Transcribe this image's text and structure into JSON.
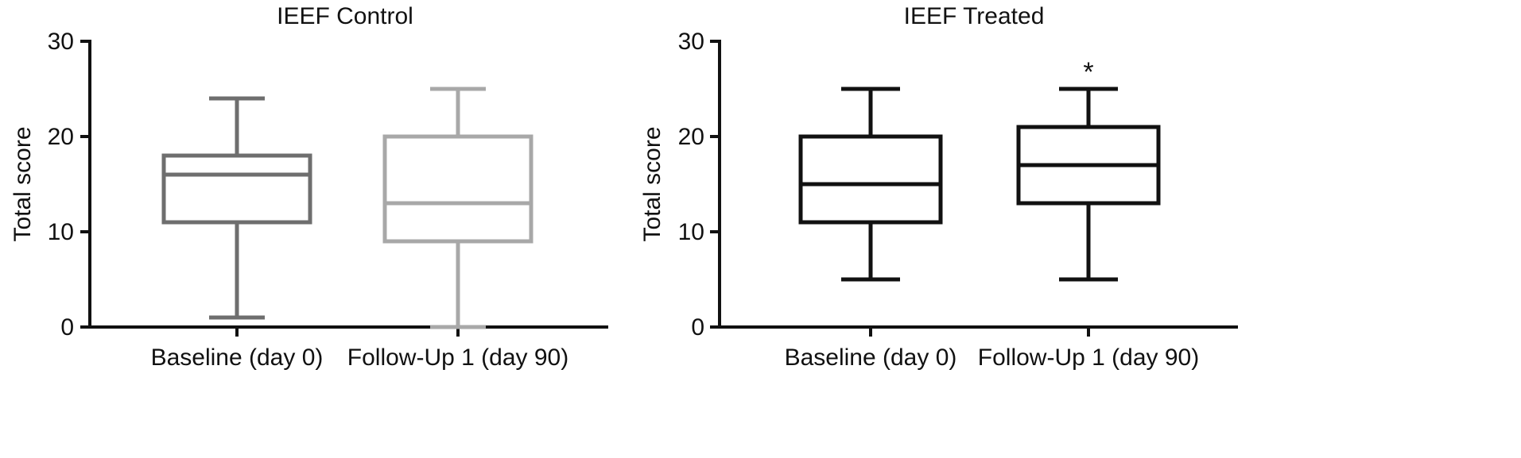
{
  "chart_data": [
    {
      "type": "boxplot",
      "title": "IEEF Control",
      "ylabel": "Total score",
      "xlabel": "",
      "ylim": [
        0,
        30
      ],
      "yticks": [
        0,
        10,
        20,
        30
      ],
      "grid": false,
      "categories": [
        "Baseline (day 0)",
        "Follow-Up 1 (day 90)"
      ],
      "boxes": [
        {
          "min": 1,
          "q1": 11,
          "median": 16,
          "q3": 18,
          "max": 24,
          "color": "#6e6e6e"
        },
        {
          "min": 0,
          "q1": 9,
          "median": 13,
          "q3": 20,
          "max": 25,
          "color": "#a8a8a8"
        }
      ],
      "annotations": []
    },
    {
      "type": "boxplot",
      "title": "IEEF Treated",
      "ylabel": "Total score",
      "xlabel": "",
      "ylim": [
        0,
        30
      ],
      "yticks": [
        0,
        10,
        20,
        30
      ],
      "grid": false,
      "categories": [
        "Baseline (day 0)",
        "Follow-Up 1 (day 90)"
      ],
      "boxes": [
        {
          "min": 5,
          "q1": 11,
          "median": 15,
          "q3": 20,
          "max": 25,
          "color": "#111111"
        },
        {
          "min": 5,
          "q1": 13,
          "median": 17,
          "q3": 21,
          "max": 25,
          "color": "#111111"
        }
      ],
      "annotations": [
        {
          "category_index": 1,
          "text": "*",
          "y": 27
        }
      ]
    }
  ]
}
